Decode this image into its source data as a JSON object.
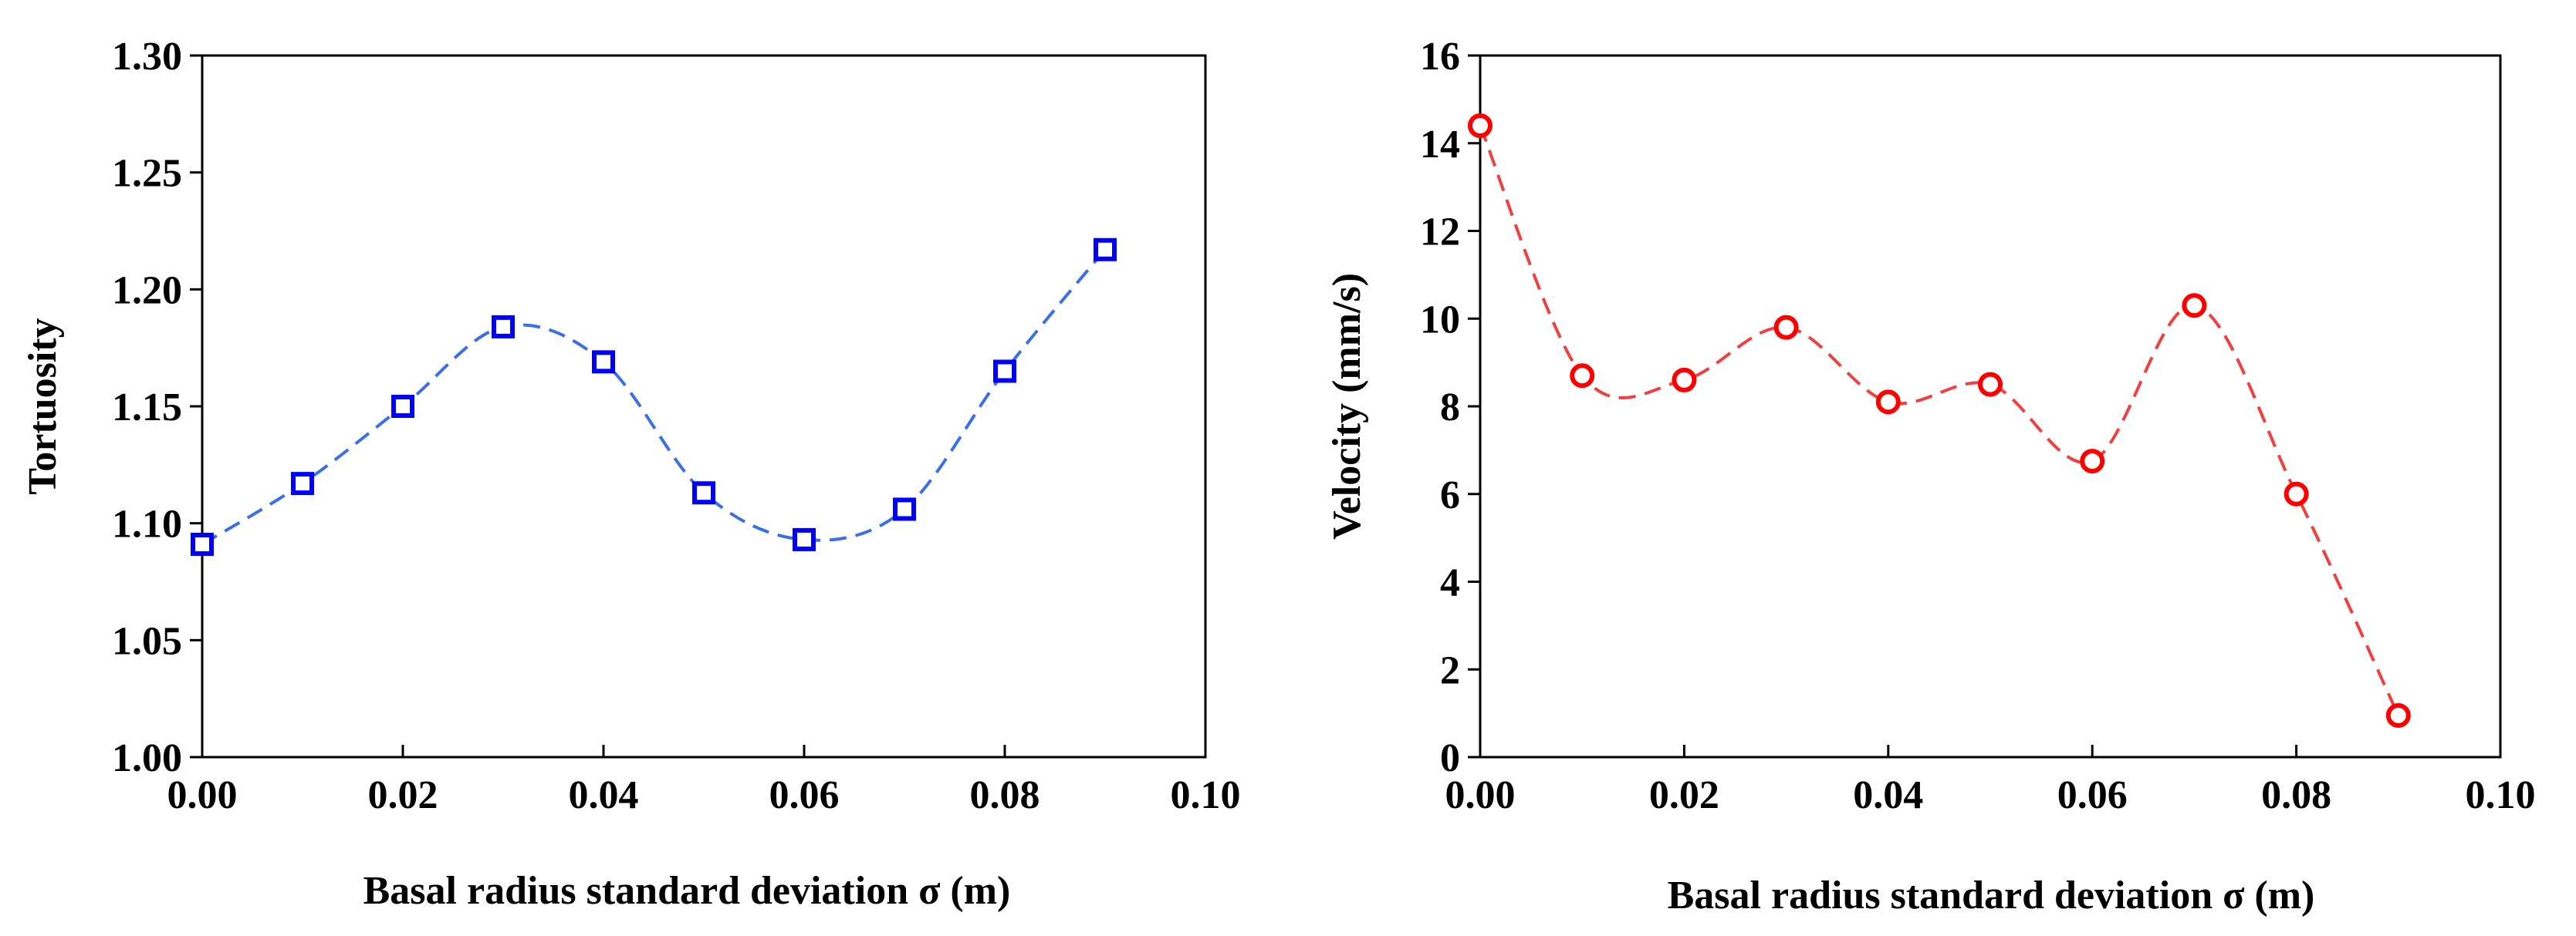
{
  "chart_data": [
    {
      "type": "scatter",
      "title": "",
      "xlabel": "Basal radius standard deviation σ (m)",
      "ylabel": "Tortuosity",
      "xlim": [
        0,
        0.1
      ],
      "ylim": [
        1.0,
        1.3
      ],
      "grid": false,
      "legend": "none",
      "x_ticks": [
        "0.00",
        "0.02",
        "0.04",
        "0.06",
        "0.08",
        "0.10"
      ],
      "y_ticks": [
        "1.00",
        "1.05",
        "1.10",
        "1.15",
        "1.20",
        "1.25",
        "1.30"
      ],
      "x_tick_values": [
        0.0,
        0.02,
        0.04,
        0.06,
        0.08,
        0.1
      ],
      "y_tick_values": [
        1.0,
        1.05,
        1.1,
        1.15,
        1.2,
        1.25,
        1.3
      ],
      "color": "#0000ff",
      "fit_color": "#3b6fe8",
      "marker": "square",
      "series": [
        {
          "name": "Tortuosity",
          "x": [
            0.0,
            0.01,
            0.02,
            0.03,
            0.04,
            0.05,
            0.06,
            0.07,
            0.08,
            0.09
          ],
          "y": [
            1.091,
            1.117,
            1.15,
            1.184,
            1.169,
            1.113,
            1.093,
            1.106,
            1.165,
            1.217
          ]
        }
      ]
    },
    {
      "type": "scatter",
      "title": "",
      "xlabel": "Basal radius standard deviation σ (m)",
      "ylabel": "Velocity (mm/s)",
      "xlim": [
        0,
        0.1
      ],
      "ylim": [
        0,
        16
      ],
      "grid": false,
      "legend": "none",
      "x_ticks": [
        "0.00",
        "0.02",
        "0.04",
        "0.06",
        "0.08",
        "0.10"
      ],
      "y_ticks": [
        "0",
        "2",
        "4",
        "6",
        "8",
        "10",
        "12",
        "14",
        "16"
      ],
      "x_tick_values": [
        0.0,
        0.02,
        0.04,
        0.06,
        0.08,
        0.1
      ],
      "y_tick_values": [
        0,
        2,
        4,
        6,
        8,
        10,
        12,
        14,
        16
      ],
      "color": "#ff0000",
      "fit_color": "#f04040",
      "marker": "circle",
      "series": [
        {
          "name": "Velocity",
          "x": [
            0.0,
            0.01,
            0.02,
            0.03,
            0.04,
            0.05,
            0.06,
            0.07,
            0.08,
            0.09
          ],
          "y": [
            14.4,
            8.7,
            8.6,
            9.8,
            8.1,
            8.5,
            6.75,
            10.3,
            6.0,
            0.95
          ]
        }
      ]
    }
  ]
}
